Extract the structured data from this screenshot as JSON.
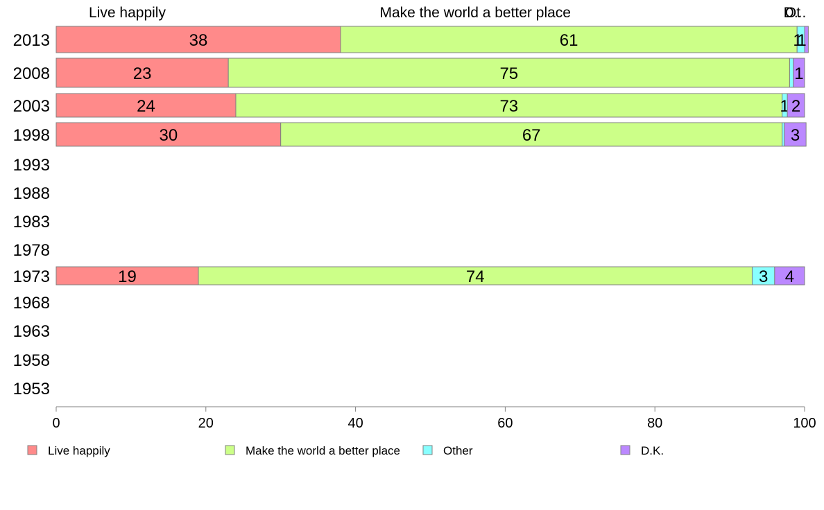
{
  "chart_data": {
    "type": "bar",
    "orientation": "horizontal",
    "stacked": true,
    "categories": [
      "2013",
      "2008",
      "2003",
      "1998",
      "1993",
      "1988",
      "1983",
      "1978",
      "1973",
      "1968",
      "1963",
      "1958",
      "1953"
    ],
    "series": [
      {
        "name": "Live happily",
        "color": "#ff8a8a",
        "values": [
          38,
          23,
          24,
          30,
          null,
          null,
          null,
          null,
          19,
          null,
          null,
          null,
          null
        ]
      },
      {
        "name": "Make the world a better place",
        "color": "#ccff88",
        "values": [
          61,
          75,
          73,
          67,
          null,
          null,
          null,
          null,
          74,
          null,
          null,
          null,
          null
        ]
      },
      {
        "name": "Other",
        "color": "#88ffff",
        "values": [
          1,
          0.5,
          0.7,
          0.3,
          null,
          null,
          null,
          null,
          3,
          null,
          null,
          null,
          null
        ]
      },
      {
        "name": "D.K.",
        "color": "#bb88ff",
        "values": [
          0.5,
          1.5,
          2.3,
          2.9,
          null,
          null,
          null,
          null,
          4,
          null,
          null,
          null,
          null
        ]
      }
    ],
    "data_labels": [
      [
        "38",
        "61",
        "1",
        "1"
      ],
      [
        "23",
        "75",
        "",
        "1"
      ],
      [
        "24",
        "73",
        "1",
        "2"
      ],
      [
        "30",
        "67",
        "",
        "3"
      ],
      null,
      null,
      null,
      null,
      [
        "19",
        "74",
        "3",
        "4"
      ],
      null,
      null,
      null,
      null
    ],
    "top_labels": [
      "Live happily",
      "Make the world a better place",
      "Ot",
      "D..."
    ],
    "xlim": [
      0,
      100
    ],
    "xticks": [
      0,
      20,
      40,
      60,
      80,
      100
    ],
    "grid": false,
    "legend": {
      "placement": "bottom",
      "entries": [
        "Live happily",
        "Make the world a better place",
        "Other",
        "D.K."
      ]
    }
  }
}
